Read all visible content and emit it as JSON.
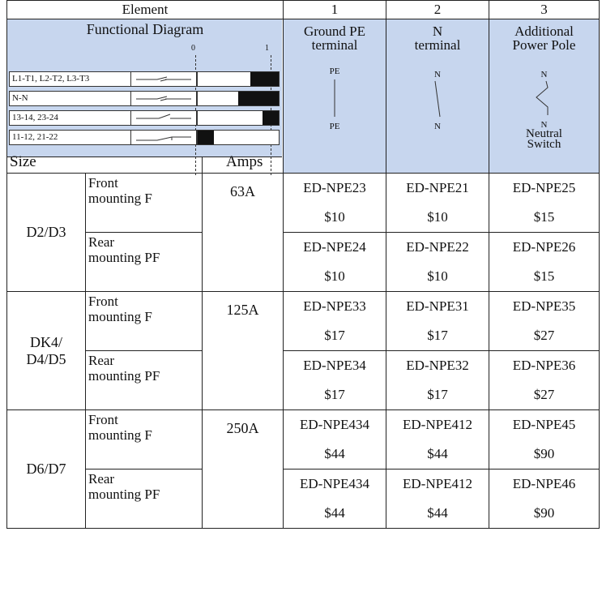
{
  "header": {
    "element": "Element",
    "col1": "1",
    "col2": "2",
    "col3": "3"
  },
  "diagram": {
    "title": "Functional Diagram",
    "tick0": "0",
    "tick1": "1",
    "rows": [
      {
        "label": "L1-T1, L2-T2, L3-T3",
        "fill_start": 0.65,
        "fill_end": 1.0
      },
      {
        "label": "N-N",
        "fill_start": 0.5,
        "fill_end": 1.0
      },
      {
        "label": "13-14, 23-24",
        "fill_start": 0.8,
        "fill_end": 1.0
      },
      {
        "label": "11-12, 21-22",
        "fill_start": 0.0,
        "fill_end": 0.2
      }
    ],
    "size_label": "Size",
    "amps_label": "Amps"
  },
  "columns": [
    {
      "title_line1": "Ground PE",
      "title_line2": "terminal",
      "sym_top": "PE",
      "sym_bottom": "PE",
      "note1": "",
      "note2": "",
      "symbol": "pe-line-icon"
    },
    {
      "title_line1": "N",
      "title_line2": "terminal",
      "sym_top": "N",
      "sym_bottom": "N",
      "note1": "",
      "note2": "",
      "symbol": "n-line-icon"
    },
    {
      "title_line1": "Additional",
      "title_line2": "Power Pole",
      "sym_top": "N",
      "sym_bottom": "N",
      "note1": "Neutral",
      "note2": "Switch",
      "symbol": "neutral-switch-icon"
    }
  ],
  "groups": [
    {
      "size": "D2/D3",
      "amps": "63A",
      "rows": [
        {
          "mount_line1": "Front",
          "mount_line2": "mounting F",
          "codes": [
            "ED-NPE23",
            "ED-NPE21",
            "ED-NPE25"
          ],
          "prices": [
            "$10",
            "$10",
            "$15"
          ]
        },
        {
          "mount_line1": "Rear",
          "mount_line2": "mounting PF",
          "codes": [
            "ED-NPE24",
            "ED-NPE22",
            "ED-NPE26"
          ],
          "prices": [
            "$10",
            "$10",
            "$15"
          ]
        }
      ]
    },
    {
      "size_line1": "DK4/",
      "size_line2": "D4/D5",
      "amps": "125A",
      "rows": [
        {
          "mount_line1": "Front",
          "mount_line2": "mounting F",
          "codes": [
            "ED-NPE33",
            "ED-NPE31",
            "ED-NPE35"
          ],
          "prices": [
            "$17",
            "$17",
            "$27"
          ]
        },
        {
          "mount_line1": "Rear",
          "mount_line2": "mounting PF",
          "codes": [
            "ED-NPE34",
            "ED-NPE32",
            "ED-NPE36"
          ],
          "prices": [
            "$17",
            "$17",
            "$27"
          ]
        }
      ]
    },
    {
      "size": "D6/D7",
      "amps": "250A",
      "rows": [
        {
          "mount_line1": "Front",
          "mount_line2": "mounting F",
          "codes": [
            "ED-NPE434",
            "ED-NPE412",
            "ED-NPE45"
          ],
          "prices": [
            "$44",
            "$44",
            "$90"
          ]
        },
        {
          "mount_line1": "Rear",
          "mount_line2": "mounting PF",
          "codes": [
            "ED-NPE434",
            "ED-NPE412",
            "ED-NPE46"
          ],
          "prices": [
            "$44",
            "$44",
            "$90"
          ]
        }
      ]
    }
  ]
}
